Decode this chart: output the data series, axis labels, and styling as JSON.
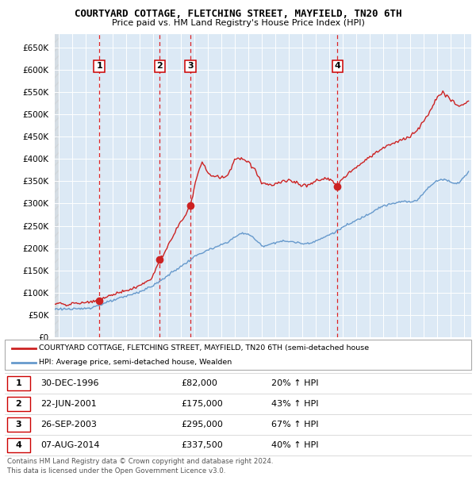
{
  "title": "COURTYARD COTTAGE, FLETCHING STREET, MAYFIELD, TN20 6TH",
  "subtitle": "Price paid vs. HM Land Registry's House Price Index (HPI)",
  "hpi_label": "HPI: Average price, semi-detached house, Wealden",
  "property_label": "COURTYARD COTTAGE, FLETCHING STREET, MAYFIELD, TN20 6TH (semi-detached house",
  "background_color": "#dce9f5",
  "grid_color": "#ffffff",
  "hpi_color": "#6699cc",
  "property_color": "#cc2222",
  "ylim": [
    0,
    680000
  ],
  "yticks": [
    0,
    50000,
    100000,
    150000,
    200000,
    250000,
    300000,
    350000,
    400000,
    450000,
    500000,
    550000,
    600000,
    650000
  ],
  "purchases": [
    {
      "num": 1,
      "date_label": "30-DEC-1996",
      "price": 82000,
      "pct": "20%",
      "x_year": 1996.99
    },
    {
      "num": 2,
      "date_label": "22-JUN-2001",
      "price": 175000,
      "pct": "43%",
      "x_year": 2001.47
    },
    {
      "num": 3,
      "date_label": "26-SEP-2003",
      "price": 295000,
      "pct": "67%",
      "x_year": 2003.73
    },
    {
      "num": 4,
      "date_label": "07-AUG-2014",
      "price": 337500,
      "pct": "40%",
      "x_year": 2014.6
    }
  ],
  "footer_line1": "Contains HM Land Registry data © Crown copyright and database right 2024.",
  "footer_line2": "This data is licensed under the Open Government Licence v3.0.",
  "xmin": 1993.7,
  "xmax": 2024.5,
  "hpi_keypoints_x": [
    1993.7,
    1994.5,
    1995.0,
    1995.5,
    1996.0,
    1996.5,
    1997.0,
    1997.5,
    1998.0,
    1998.5,
    1999.0,
    1999.5,
    2000.0,
    2000.5,
    2001.0,
    2001.5,
    2002.0,
    2002.5,
    2003.0,
    2003.5,
    2004.0,
    2004.5,
    2005.0,
    2005.5,
    2006.0,
    2006.5,
    2007.0,
    2007.5,
    2008.0,
    2008.5,
    2009.0,
    2009.5,
    2010.0,
    2010.5,
    2011.0,
    2011.5,
    2012.0,
    2012.5,
    2013.0,
    2013.5,
    2014.0,
    2014.5,
    2015.0,
    2015.5,
    2016.0,
    2016.5,
    2017.0,
    2017.5,
    2018.0,
    2018.5,
    2019.0,
    2019.5,
    2020.0,
    2020.5,
    2021.0,
    2021.5,
    2022.0,
    2022.5,
    2023.0,
    2023.5,
    2024.3
  ],
  "hpi_keypoints_y": [
    63000,
    63500,
    62000,
    63000,
    65000,
    67000,
    72000,
    77000,
    82000,
    87000,
    92000,
    97000,
    102000,
    109000,
    116000,
    126000,
    137000,
    148000,
    158000,
    168000,
    180000,
    188000,
    195000,
    200000,
    207000,
    214000,
    224000,
    233000,
    232000,
    220000,
    205000,
    207000,
    213000,
    215000,
    215000,
    213000,
    210000,
    211000,
    216000,
    222000,
    230000,
    237000,
    247000,
    254000,
    262000,
    270000,
    278000,
    288000,
    295000,
    298000,
    302000,
    305000,
    303000,
    308000,
    325000,
    340000,
    352000,
    355000,
    348000,
    345000,
    370000
  ],
  "prop_keypoints_x": [
    1993.7,
    1994.3,
    1994.8,
    1995.3,
    1995.8,
    1996.3,
    1996.99,
    1997.3,
    1997.8,
    1998.3,
    1998.8,
    1999.3,
    1999.8,
    2000.3,
    2000.8,
    2001.0,
    2001.47,
    2001.8,
    2002.2,
    2002.6,
    2003.0,
    2003.4,
    2003.73,
    2004.0,
    2004.3,
    2004.6,
    2005.0,
    2005.5,
    2006.0,
    2006.5,
    2007.0,
    2007.5,
    2008.0,
    2008.5,
    2009.0,
    2009.5,
    2010.0,
    2010.5,
    2011.0,
    2011.5,
    2012.0,
    2012.5,
    2013.0,
    2013.5,
    2014.0,
    2014.6,
    2015.0,
    2015.5,
    2016.0,
    2016.5,
    2017.0,
    2017.5,
    2018.0,
    2018.5,
    2019.0,
    2019.5,
    2020.0,
    2020.5,
    2021.0,
    2021.5,
    2022.0,
    2022.4,
    2022.8,
    2023.2,
    2023.6,
    2024.0,
    2024.3
  ],
  "prop_keypoints_y": [
    75000,
    74000,
    73000,
    75000,
    77000,
    79000,
    82000,
    87000,
    93000,
    99000,
    103000,
    107000,
    112000,
    120000,
    130000,
    140000,
    175000,
    188000,
    210000,
    238000,
    258000,
    275000,
    295000,
    330000,
    370000,
    395000,
    370000,
    360000,
    358000,
    362000,
    400000,
    402000,
    395000,
    375000,
    348000,
    342000,
    345000,
    350000,
    352000,
    348000,
    340000,
    342000,
    350000,
    355000,
    355000,
    337500,
    358000,
    370000,
    382000,
    392000,
    405000,
    415000,
    425000,
    432000,
    438000,
    445000,
    452000,
    465000,
    485000,
    510000,
    540000,
    548000,
    540000,
    528000,
    518000,
    525000,
    530000
  ]
}
